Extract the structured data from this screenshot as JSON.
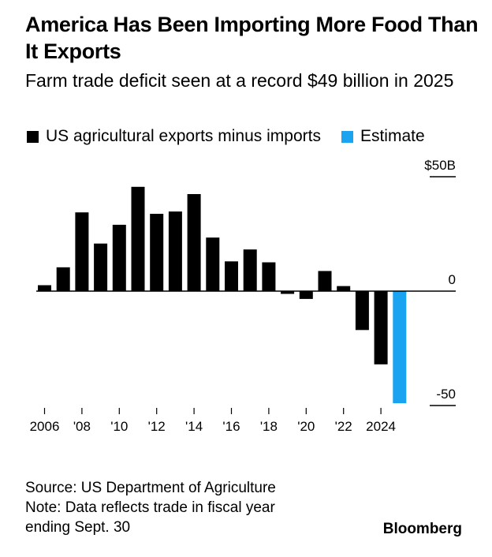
{
  "header": {
    "title": "America Has Been Importing More Food Than It Exports",
    "subtitle": "Farm trade deficit seen at a record $49 billion in 2025"
  },
  "legend": {
    "items": [
      {
        "label": "US agricultural exports minus imports",
        "color": "#000000"
      },
      {
        "label": "Estimate",
        "color": "#1AA3F0"
      }
    ]
  },
  "chart_data": {
    "type": "bar",
    "title": "America Has Been Importing More Food Than It Exports",
    "subtitle": "Farm trade deficit seen at a record $49 billion in 2025",
    "xlabel": "",
    "ylabel": "",
    "ylim": [
      -50,
      50
    ],
    "y_ticks": [
      {
        "value": 50,
        "label": "$50B"
      },
      {
        "value": 0,
        "label": "0"
      },
      {
        "value": -50,
        "label": "-50"
      }
    ],
    "x_ticks": [
      {
        "year": 2006,
        "label": "2006"
      },
      {
        "year": 2008,
        "label": "'08"
      },
      {
        "year": 2010,
        "label": "'10"
      },
      {
        "year": 2012,
        "label": "'12"
      },
      {
        "year": 2014,
        "label": "'14"
      },
      {
        "year": 2016,
        "label": "'16"
      },
      {
        "year": 2018,
        "label": "'18"
      },
      {
        "year": 2020,
        "label": "'20"
      },
      {
        "year": 2022,
        "label": "'22"
      },
      {
        "year": 2024,
        "label": "2024"
      }
    ],
    "categories": [
      2006,
      2007,
      2008,
      2009,
      2010,
      2011,
      2012,
      2013,
      2014,
      2015,
      2016,
      2017,
      2018,
      2019,
      2020,
      2021,
      2022,
      2023,
      2024,
      2025
    ],
    "series": [
      {
        "name": "US agricultural exports minus imports",
        "color": "#000000",
        "values": [
          2.6,
          10.4,
          34.4,
          20.8,
          29.0,
          45.6,
          33.8,
          34.8,
          42.4,
          23.4,
          13.0,
          18.2,
          12.6,
          -1.2,
          -3.4,
          8.8,
          2.2,
          -17.0,
          -32.0,
          null
        ]
      },
      {
        "name": "Estimate",
        "color": "#1AA3F0",
        "values": [
          null,
          null,
          null,
          null,
          null,
          null,
          null,
          null,
          null,
          null,
          null,
          null,
          null,
          null,
          null,
          null,
          null,
          null,
          null,
          -49.0
        ]
      }
    ]
  },
  "footer": {
    "source": "Source: US Department of Agriculture",
    "note_line1": "Note: Data reflects trade in fiscal year",
    "note_line2": "ending Sept. 30",
    "brand": "Bloomberg"
  }
}
